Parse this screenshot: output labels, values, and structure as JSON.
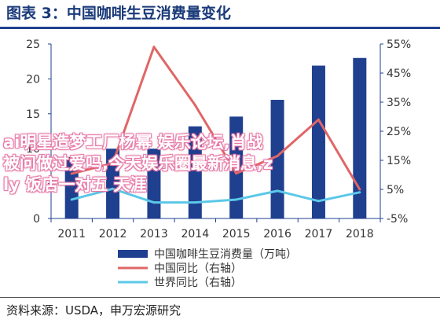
{
  "figure_title": "图表 3：中国咖啡生豆消费量变化",
  "source": "资料来源：USDA，申万宏源研究",
  "watermark": {
    "line1": "ai明星造梦工厂杨幂 娱乐论坛,肖战",
    "line2": "被问做过爱吗,今天娱乐圈最新消息,z",
    "line3": "ly  饭店一对五 天涯"
  },
  "colors": {
    "bar": "#1f3f8f",
    "china_yoy": "#e06666",
    "world_yoy": "#5bc8e8",
    "axis": "#1f3f8f"
  },
  "chart_data": {
    "type": "bar",
    "categories": [
      "2011",
      "2012",
      "2013",
      "2014",
      "2015",
      "2016",
      "2017",
      "2018"
    ],
    "series": [
      {
        "name": "中国咖啡生豆消费量（万吨）",
        "type": "bar",
        "axis": "left",
        "values": [
          8.8,
          10.0,
          10.0,
          13.2,
          14.6,
          17.0,
          21.9,
          23.0
        ]
      },
      {
        "name": "中国同比（右轴）",
        "type": "line",
        "axis": "right",
        "values": [
          0.104,
          0.14,
          0.54,
          0.34,
          0.105,
          0.165,
          0.29,
          0.05
        ]
      },
      {
        "name": "世界同比（右轴）",
        "type": "line",
        "axis": "right",
        "values": [
          0.015,
          0.052,
          0.005,
          0.005,
          0.015,
          0.045,
          0.01,
          0.04
        ]
      }
    ],
    "left_axis": {
      "min": 0,
      "max": 25,
      "ticks": [
        "0",
        "5",
        "10",
        "15",
        "20",
        "25"
      ]
    },
    "right_axis": {
      "min": -0.05,
      "max": 0.55,
      "ticks": [
        "-5%",
        "5%",
        "15%",
        "25%",
        "35%",
        "45%",
        "55%"
      ]
    },
    "legend_position": "bottom",
    "grid": false
  }
}
